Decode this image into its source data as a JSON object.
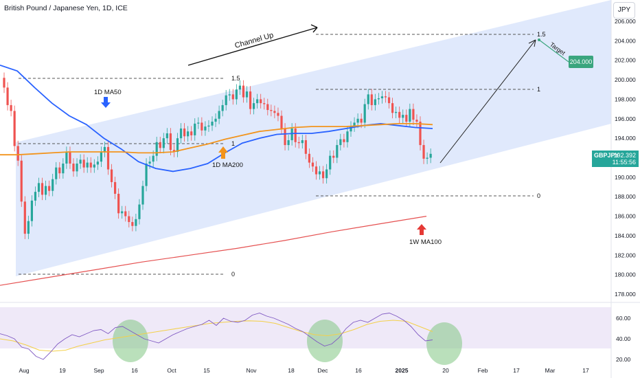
{
  "header": {
    "title": "British Pound / Japanese Yen, 1D, ICE",
    "currency": "JPY"
  },
  "price_tag": {
    "symbol": "GBPJPY",
    "price": "192.392",
    "countdown": "11:55:56"
  },
  "target_tag": "204.000",
  "annotations": {
    "channel_up": "Channel Up",
    "target": "Target",
    "ma50": "1D MA50",
    "ma200": "1D MA200",
    "ma100w": "1W MA100",
    "fib_top": "1.5",
    "fib_target": "1.5",
    "fib_one_a": "1",
    "fib_one_b": "1",
    "fib_zero_a": "0",
    "fib_zero_b": "0"
  },
  "colors": {
    "up": "#26a69a",
    "down": "#ef5350",
    "ma50": "#2962ff",
    "ma200": "#f2941c",
    "ma100w": "#e55050",
    "channel": "#dde7fc",
    "rsi": "#7e57c2",
    "rsi_ma": "#f3d04a",
    "rsi_highlight": "#81c784"
  },
  "chart_data": [
    {
      "type": "candlestick",
      "title": "British Pound / Japanese Yen, 1D, ICE",
      "ylim": [
        177,
        207
      ],
      "y_ticks": [
        178,
        180,
        182,
        184,
        186,
        188,
        190,
        192,
        194,
        196,
        198,
        200,
        202,
        204,
        206
      ],
      "x_ticks": [
        "Aug",
        "19",
        "Sep",
        "16",
        "Oct",
        "15",
        "Nov",
        "18",
        "Dec",
        "16",
        "2025",
        "20",
        "Feb",
        "17",
        "Mar",
        "17"
      ],
      "grid": false,
      "start": "2024-07-29",
      "series_close": [
        199.2,
        197.4,
        196.8,
        193.2,
        191.7,
        187.5,
        184.2,
        185.5,
        187.6,
        188.5,
        189.4,
        188.2,
        189.1,
        188.6,
        189.8,
        191.0,
        190.4,
        191.4,
        192.6,
        191.4,
        190.6,
        191.4,
        191.8,
        191.0,
        191.5,
        191.0,
        191.3,
        191.6,
        192.6,
        193.1,
        190.8,
        189.5,
        188.3,
        186.3,
        186.5,
        186.0,
        185.4,
        185.0,
        185.7,
        187.2,
        189.1,
        191.4,
        191.6,
        192.2,
        193.6,
        193.0,
        194.0,
        194.5,
        192.8,
        192.6,
        194.0,
        195.0,
        194.2,
        194.7,
        194.3,
        195.5,
        195.6,
        194.8,
        195.2,
        195.3,
        195.7,
        196.0,
        196.8,
        197.4,
        198.4,
        198.5,
        198.0,
        199.0,
        199.4,
        198.2,
        198.8,
        197.0,
        197.6,
        198.0,
        197.6,
        197.5,
        196.9,
        196.8,
        196.6,
        196.3,
        195.0,
        193.3,
        193.8,
        195.0,
        193.6,
        193.5,
        193.8,
        192.4,
        191.5,
        191.1,
        190.3,
        190.6,
        189.9,
        190.8,
        192.2,
        192.0,
        193.3,
        193.9,
        193.6,
        194.7,
        195.2,
        195.6,
        196.0,
        195.6,
        197.5,
        198.5,
        197.4,
        198.0,
        198.1,
        198.3,
        198.2,
        197.6,
        196.6,
        196.7,
        196.1,
        196.4,
        195.7,
        197.0,
        195.9,
        195.7,
        193.3,
        191.9,
        192.0,
        192.4
      ]
    },
    {
      "type": "line",
      "title": "",
      "series": [
        {
          "name": "1D MA50",
          "values": [
            201.5,
            200.9,
            199.2,
            197.6,
            196.3,
            195.4,
            194.0,
            192.9,
            191.6,
            190.9,
            190.6,
            190.9,
            191.4,
            192.5,
            193.5,
            194.0,
            194.4,
            194.5,
            194.5,
            194.7,
            195.0,
            195.3,
            195.5,
            195.3,
            195.1,
            195.0
          ]
        },
        {
          "name": "1D MA200",
          "values": [
            192.3,
            192.3,
            192.4,
            192.5,
            192.6,
            192.6,
            192.6,
            192.6,
            192.5,
            192.5,
            192.6,
            193.0,
            193.4,
            193.9,
            194.3,
            194.7,
            194.9,
            195.1,
            195.2,
            195.2,
            195.2,
            195.3,
            195.4,
            195.5,
            195.5,
            195.4
          ]
        },
        {
          "name": "1W MA100",
          "values": [
            178.9,
            179.7,
            180.5,
            181.3,
            182.0,
            182.7,
            183.5,
            184.4,
            185.2,
            186.0
          ]
        }
      ],
      "ylim": [
        177,
        207
      ]
    },
    {
      "type": "line",
      "title": "",
      "y_ticks": [
        20.0,
        40.0,
        60.0
      ],
      "ylim": [
        18,
        72
      ],
      "series": [
        {
          "name": "",
          "values": [
            45,
            43,
            40,
            32,
            30,
            23,
            20,
            27,
            35,
            40,
            44,
            42,
            45,
            48,
            49,
            45,
            51,
            52,
            48,
            44,
            40,
            38,
            36,
            40,
            44,
            47,
            50,
            52,
            54,
            58,
            53,
            60,
            57,
            56,
            58,
            63,
            65,
            62,
            60,
            57,
            54,
            50,
            47,
            42,
            37,
            33,
            35,
            41,
            50,
            56,
            58,
            56,
            60,
            64,
            65,
            62,
            58,
            52,
            44,
            38,
            39
          ]
        },
        {
          "name": "",
          "values": [
            40,
            38,
            34,
            29,
            28,
            29,
            33,
            36,
            39,
            41,
            43,
            45,
            47,
            49,
            51,
            53,
            55,
            56,
            57,
            57.5,
            57,
            55,
            51,
            47,
            44,
            43,
            45,
            49,
            54,
            57,
            58,
            57,
            52,
            47
          ]
        }
      ]
    }
  ]
}
